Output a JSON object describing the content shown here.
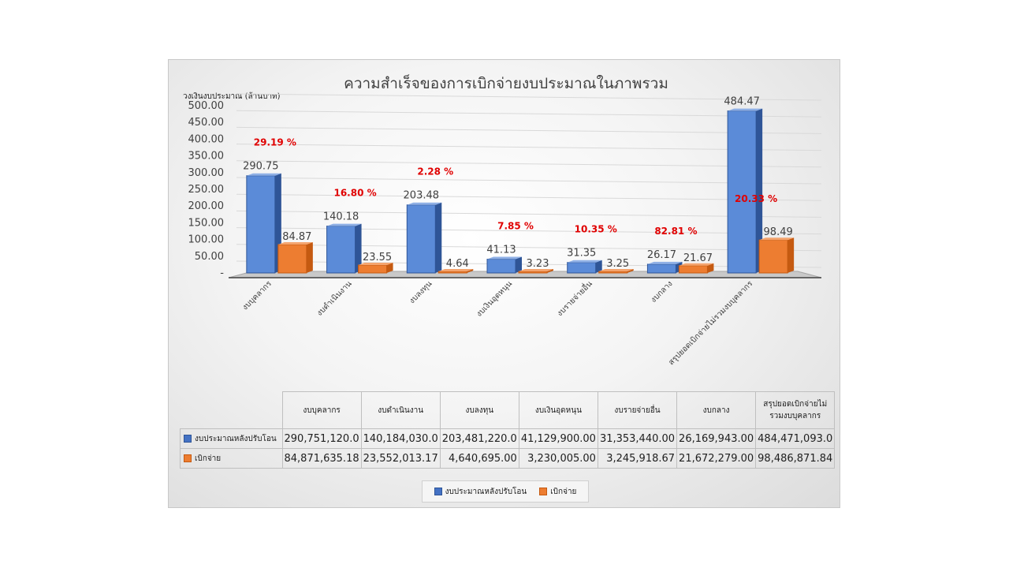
{
  "chart_data": {
    "type": "bar",
    "title": "ความสำเร็จของการเบิกจ่ายงบประมาณในภาพรวม",
    "ylabel": "วงเงินงบประมาณ (ล้านบาท)",
    "ylim": [
      0,
      500
    ],
    "yticks": [
      "-",
      "50.00",
      "100.00",
      "150.00",
      "200.00",
      "250.00",
      "300.00",
      "350.00",
      "400.00",
      "450.00",
      "500.00"
    ],
    "grid": true,
    "legend_position": "bottom",
    "categories": [
      "งบบุคลากร",
      "งบดำเนินงาน",
      "งบลงทุน",
      "งบเงินอุดหนุน",
      "งบรายจ่ายอื่น",
      "งบกลาง",
      "สรุปยอดเบิกจ่ายไม่รวมงบบุคลากร"
    ],
    "table_headers": [
      "งบบุคลากร",
      "งบดำเนินงาน",
      "งบลงทุน",
      "งบเงินอุดหนุน",
      "งบรายจ่ายอื่น",
      "งบกลาง",
      "สรุปยอดเบิกจ่ายไม่รวมงบบุคลากร"
    ],
    "series": [
      {
        "name": "งบประมาณหลังปรับโอน",
        "color": "#4472c4",
        "values": [
          290.75,
          140.18,
          203.48,
          41.13,
          31.35,
          26.17,
          484.47
        ],
        "labels": [
          "290.75",
          "140.18",
          "203.48",
          "41.13",
          "31.35",
          "26.17",
          "484.47"
        ],
        "table": [
          "290,751,120.0",
          "140,184,030.0",
          "203,481,220.0",
          "41,129,900.00",
          "31,353,440.00",
          "26,169,943.00",
          "484,471,093.0"
        ]
      },
      {
        "name": "เบิกจ่าย",
        "color": "#ed7d31",
        "values": [
          84.87,
          23.55,
          4.64,
          3.23,
          3.25,
          21.67,
          98.49
        ],
        "labels": [
          "84.87",
          "23.55",
          "4.64",
          "3.23",
          "3.25",
          "21.67",
          "98.49"
        ],
        "table": [
          "84,871,635.18",
          "23,552,013.17",
          "4,640,695.00",
          "3,230,005.00",
          "3,245,918.67",
          "21,672,279.00",
          "98,486,871.84"
        ]
      }
    ],
    "percentages": [
      "29.19 %",
      "16.80 %",
      "2.28 %",
      "7.85 %",
      "10.35 %",
      "82.81 %",
      "20.33 %"
    ]
  }
}
